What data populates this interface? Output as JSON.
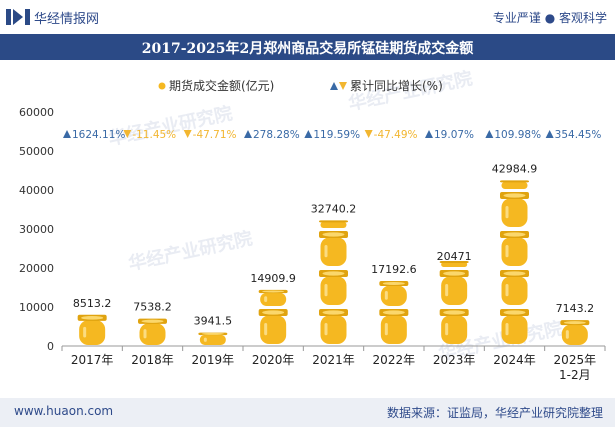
{
  "header": {
    "brand": "华经情报网",
    "tagline": "专业严谨 ● 客观科学"
  },
  "footer": {
    "url": "www.huaon.com",
    "source": "数据来源：证监局，华经产业研究院整理"
  },
  "watermark": "华经产业研究院",
  "colors": {
    "title_bg": "#2b4a86",
    "bar_gold": "#f5b821",
    "growth_up": "#3a6aa6",
    "growth_down": "#f2b630",
    "footer_bg": "#eceff5"
  },
  "chart_data": {
    "type": "bar",
    "title": "2017-2025年2月郑州商品交易所锰硅期货成交金额",
    "categories": [
      "2017年",
      "2018年",
      "2019年",
      "2020年",
      "2021年",
      "2022年",
      "2023年",
      "2024年",
      "2025年\n1-2月"
    ],
    "series": [
      {
        "name": "期货成交金额(亿元)",
        "values": [
          8513.2,
          7538.2,
          3941.5,
          14909.9,
          32740.2,
          17192.6,
          20471,
          42984.9,
          7143.2
        ],
        "labels": [
          "8513.2",
          "7538.2",
          "3941.5",
          "14909.9",
          "32740.2",
          "17192.6",
          "20471",
          "42984.9",
          "7143.2"
        ]
      },
      {
        "name": "累计同比增长(%)",
        "values": [
          1624.11,
          -11.45,
          -47.71,
          278.28,
          119.59,
          -47.49,
          19.07,
          109.98,
          354.45
        ],
        "labels": [
          "1624.11%",
          "-11.45%",
          "-47.71%",
          "278.28%",
          "119.59%",
          "-47.49%",
          "19.07%",
          "109.98%",
          "354.45%"
        ]
      }
    ],
    "yticks": [
      "0",
      "10000",
      "20000",
      "30000",
      "40000",
      "50000",
      "60000"
    ],
    "ylim": [
      0,
      60000
    ],
    "legend_position": "top-center"
  }
}
